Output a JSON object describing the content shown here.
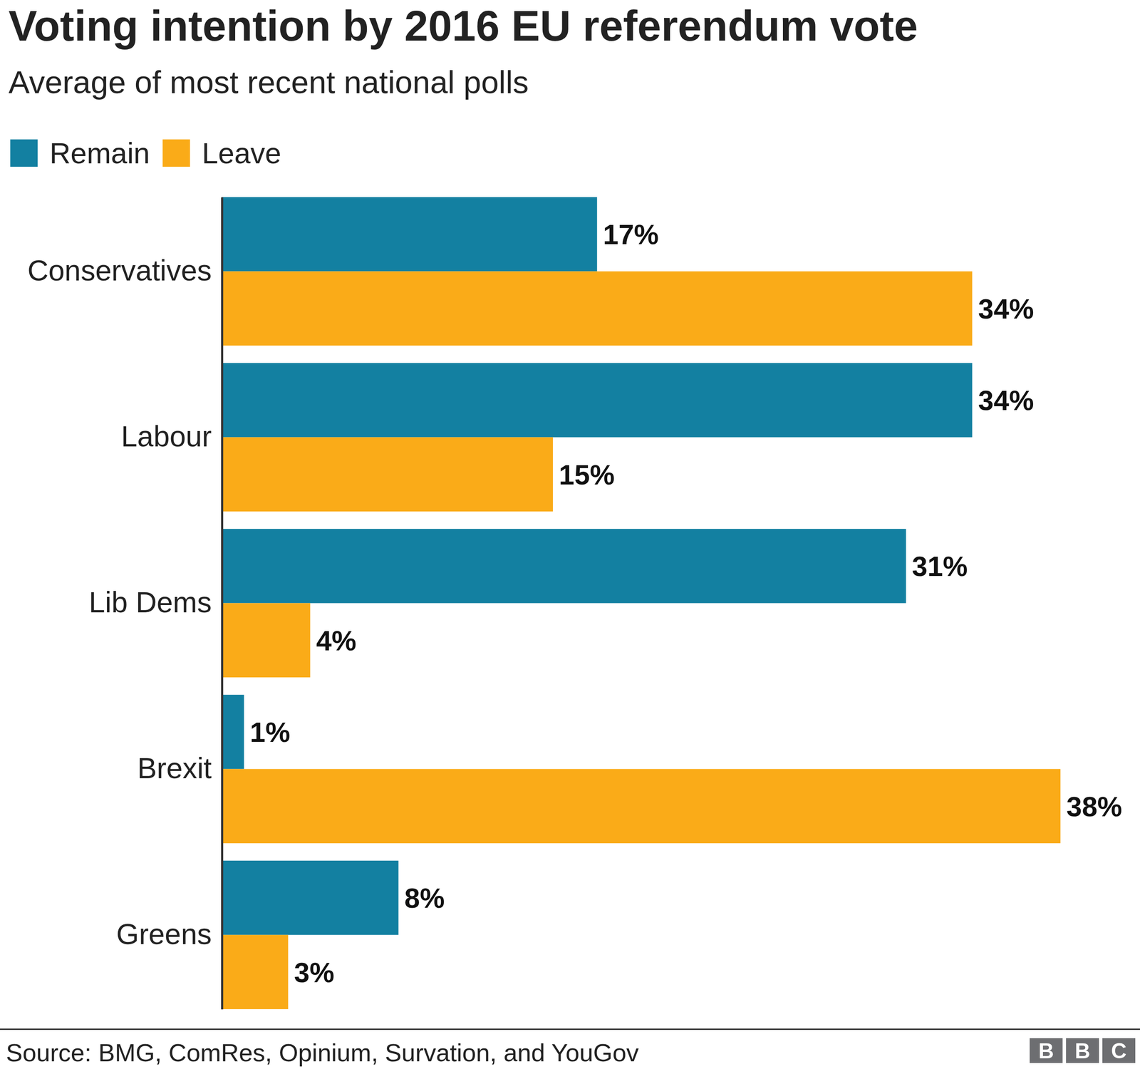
{
  "chart_data": {
    "type": "bar",
    "title": "Voting intention by 2016 EU referendum vote",
    "subtitle": "Average of most recent national polls",
    "orientation": "horizontal",
    "categories": [
      "Conservatives",
      "Labour",
      "Lib Dems",
      "Brexit",
      "Greens"
    ],
    "series": [
      {
        "name": "Remain",
        "color": "#1380A1",
        "values": [
          17,
          34,
          31,
          1,
          8
        ],
        "value_labels": [
          "17%",
          "34%",
          "31%",
          "1%",
          "8%"
        ]
      },
      {
        "name": "Leave",
        "color": "#FAAB18",
        "values": [
          34,
          15,
          4,
          38,
          3
        ],
        "value_labels": [
          "34%",
          "15%",
          "4%",
          "38%",
          "3%"
        ]
      }
    ],
    "xlim": [
      0,
      38
    ],
    "data_labels": true,
    "tick_labels": "y",
    "legend": "top-left",
    "source": "Source: BMG, ComRes, Opinium, Survation, and YouGov",
    "credit": "BBC"
  }
}
